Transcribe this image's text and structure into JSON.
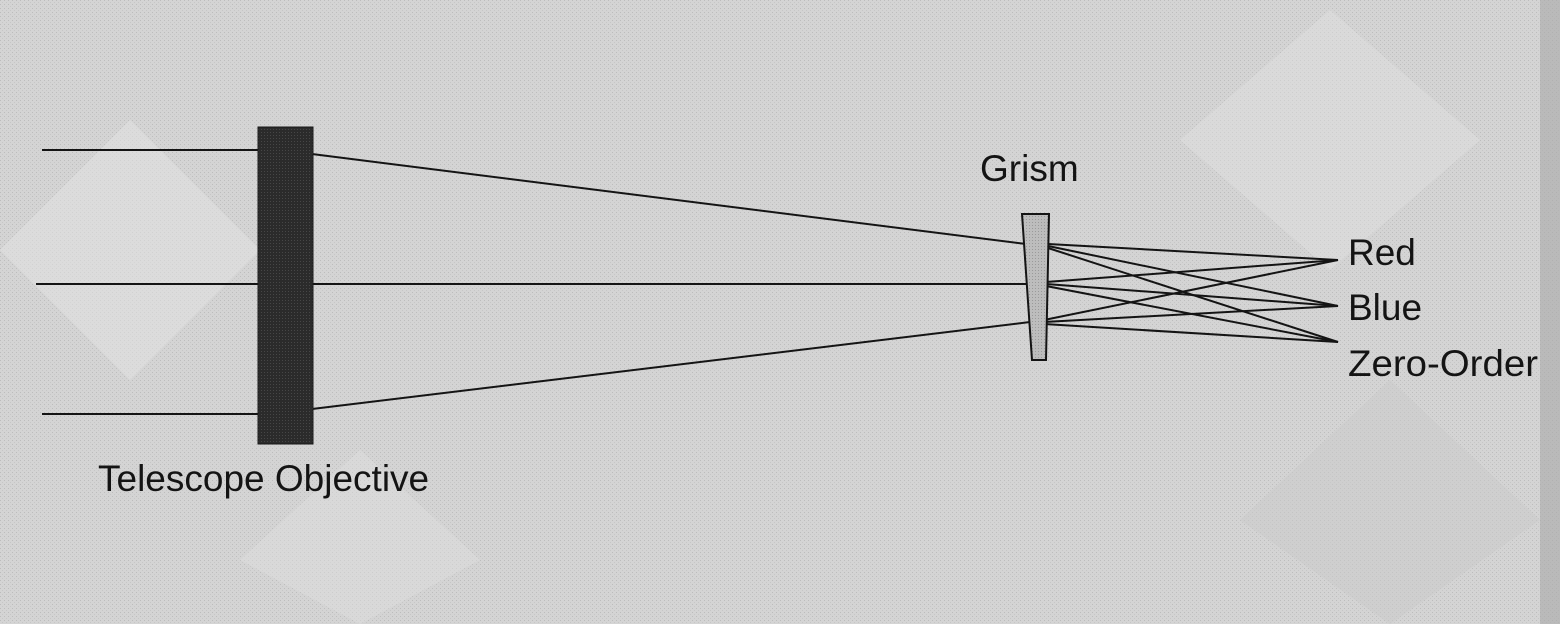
{
  "diagram": {
    "labels": {
      "telescope_objective": "Telescope Objective",
      "grism": "Grism",
      "red": "Red",
      "blue": "Blue",
      "zero_order": "Zero-Order"
    },
    "colors": {
      "background": "#d6d6d6",
      "ink": "#141414",
      "objective_fill": "#2b2b2b",
      "grism_fill": "#bdbdbd"
    }
  }
}
